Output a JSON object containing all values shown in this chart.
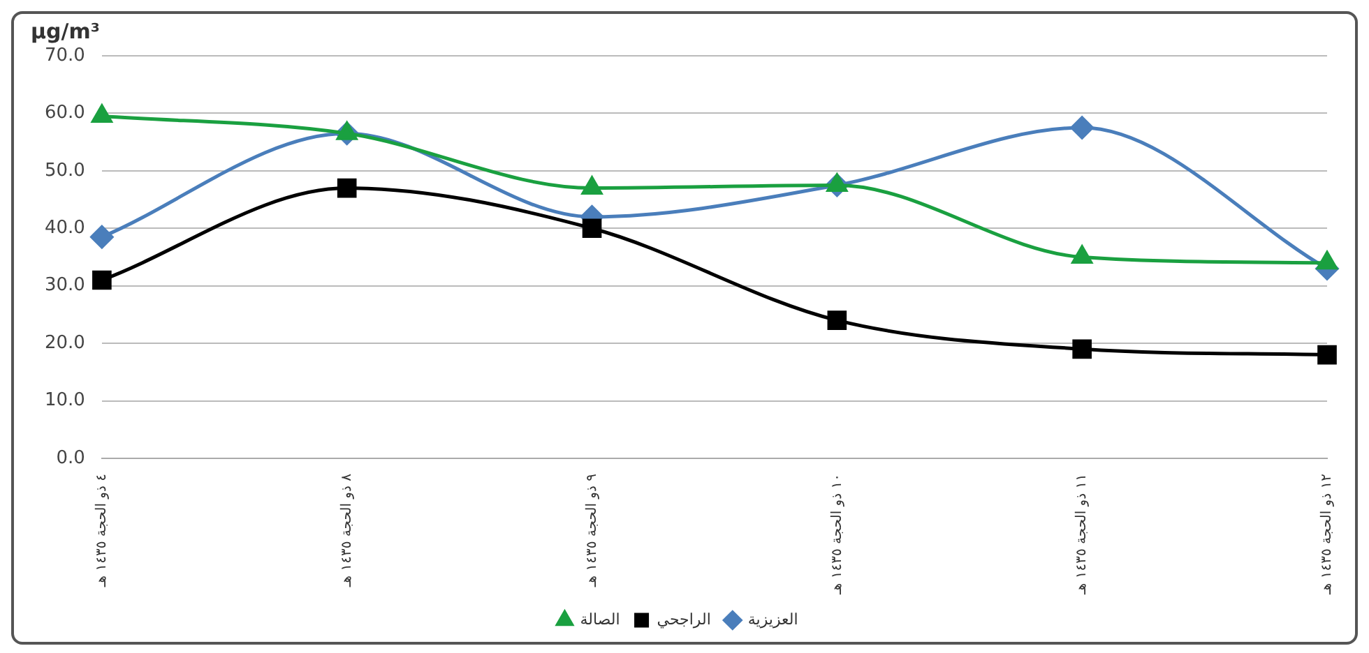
{
  "chart_data": {
    "type": "line",
    "ylabel": "µg/m³",
    "categories": [
      "٤ ذو الحجة ١٤٣٥ هـ",
      "٨ ذو الحجة ١٤٣٥ هـ",
      "٩ ذو الحجة ١٤٣٥ هـ",
      "١٠ ذو الحجة ١٤٣٥ هـ",
      "١١ ذو الحجة ١٤٣٥ هـ",
      "١٢ ذو الحجة ١٤٣٥ هـ"
    ],
    "series": [
      {
        "name": "العزيزية",
        "color": "#4a7ebb",
        "marker": "diamond",
        "values": [
          38.5,
          56.5,
          42,
          47.5,
          57.5,
          33
        ]
      },
      {
        "name": "الراجحي",
        "color": "#000000",
        "marker": "square",
        "values": [
          31,
          47,
          40,
          24,
          19,
          18
        ]
      },
      {
        "name": "الصالة",
        "color": "#1aa040",
        "marker": "triangle",
        "values": [
          59.5,
          56.5,
          47,
          47.5,
          35,
          34
        ]
      }
    ],
    "ylim": [
      0,
      70
    ],
    "yticks": [
      {
        "value": 0,
        "label": "0.0"
      },
      {
        "value": 10,
        "label": "10.0"
      },
      {
        "value": 20,
        "label": "20.0"
      },
      {
        "value": 30,
        "label": "30.0"
      },
      {
        "value": 40,
        "label": "40.0"
      },
      {
        "value": 50,
        "label": "50.0"
      },
      {
        "value": 60,
        "label": "60.0"
      },
      {
        "value": 70,
        "label": "70.0"
      }
    ],
    "grid": "y",
    "legend": "bottom",
    "line_style": "solid"
  }
}
